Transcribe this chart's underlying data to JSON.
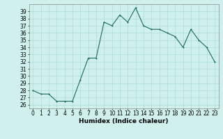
{
  "x": [
    0,
    1,
    2,
    3,
    4,
    5,
    6,
    7,
    8,
    9,
    10,
    11,
    12,
    13,
    14,
    15,
    16,
    17,
    18,
    19,
    20,
    21,
    22,
    23
  ],
  "y": [
    28,
    27.5,
    27.5,
    26.5,
    26.5,
    26.5,
    29.5,
    32.5,
    32.5,
    37.5,
    37,
    38.5,
    37.5,
    39.5,
    37,
    36.5,
    36.5,
    36,
    35.5,
    34,
    36.5,
    35,
    34,
    32
  ],
  "line_color": "#1a6b5a",
  "marker": "o",
  "marker_size": 1.5,
  "line_width": 0.8,
  "bg_color": "#cff0ec",
  "grid_color": "#aaddda",
  "xlabel": "Humidex (Indice chaleur)",
  "xlim": [
    -0.5,
    23.5
  ],
  "ylim": [
    25.5,
    40
  ],
  "yticks": [
    26,
    27,
    28,
    29,
    30,
    31,
    32,
    33,
    34,
    35,
    36,
    37,
    38,
    39
  ],
  "xticks": [
    0,
    1,
    2,
    3,
    4,
    5,
    6,
    7,
    8,
    9,
    10,
    11,
    12,
    13,
    14,
    15,
    16,
    17,
    18,
    19,
    20,
    21,
    22,
    23
  ],
  "xlabel_fontsize": 6.5,
  "tick_fontsize": 5.5
}
